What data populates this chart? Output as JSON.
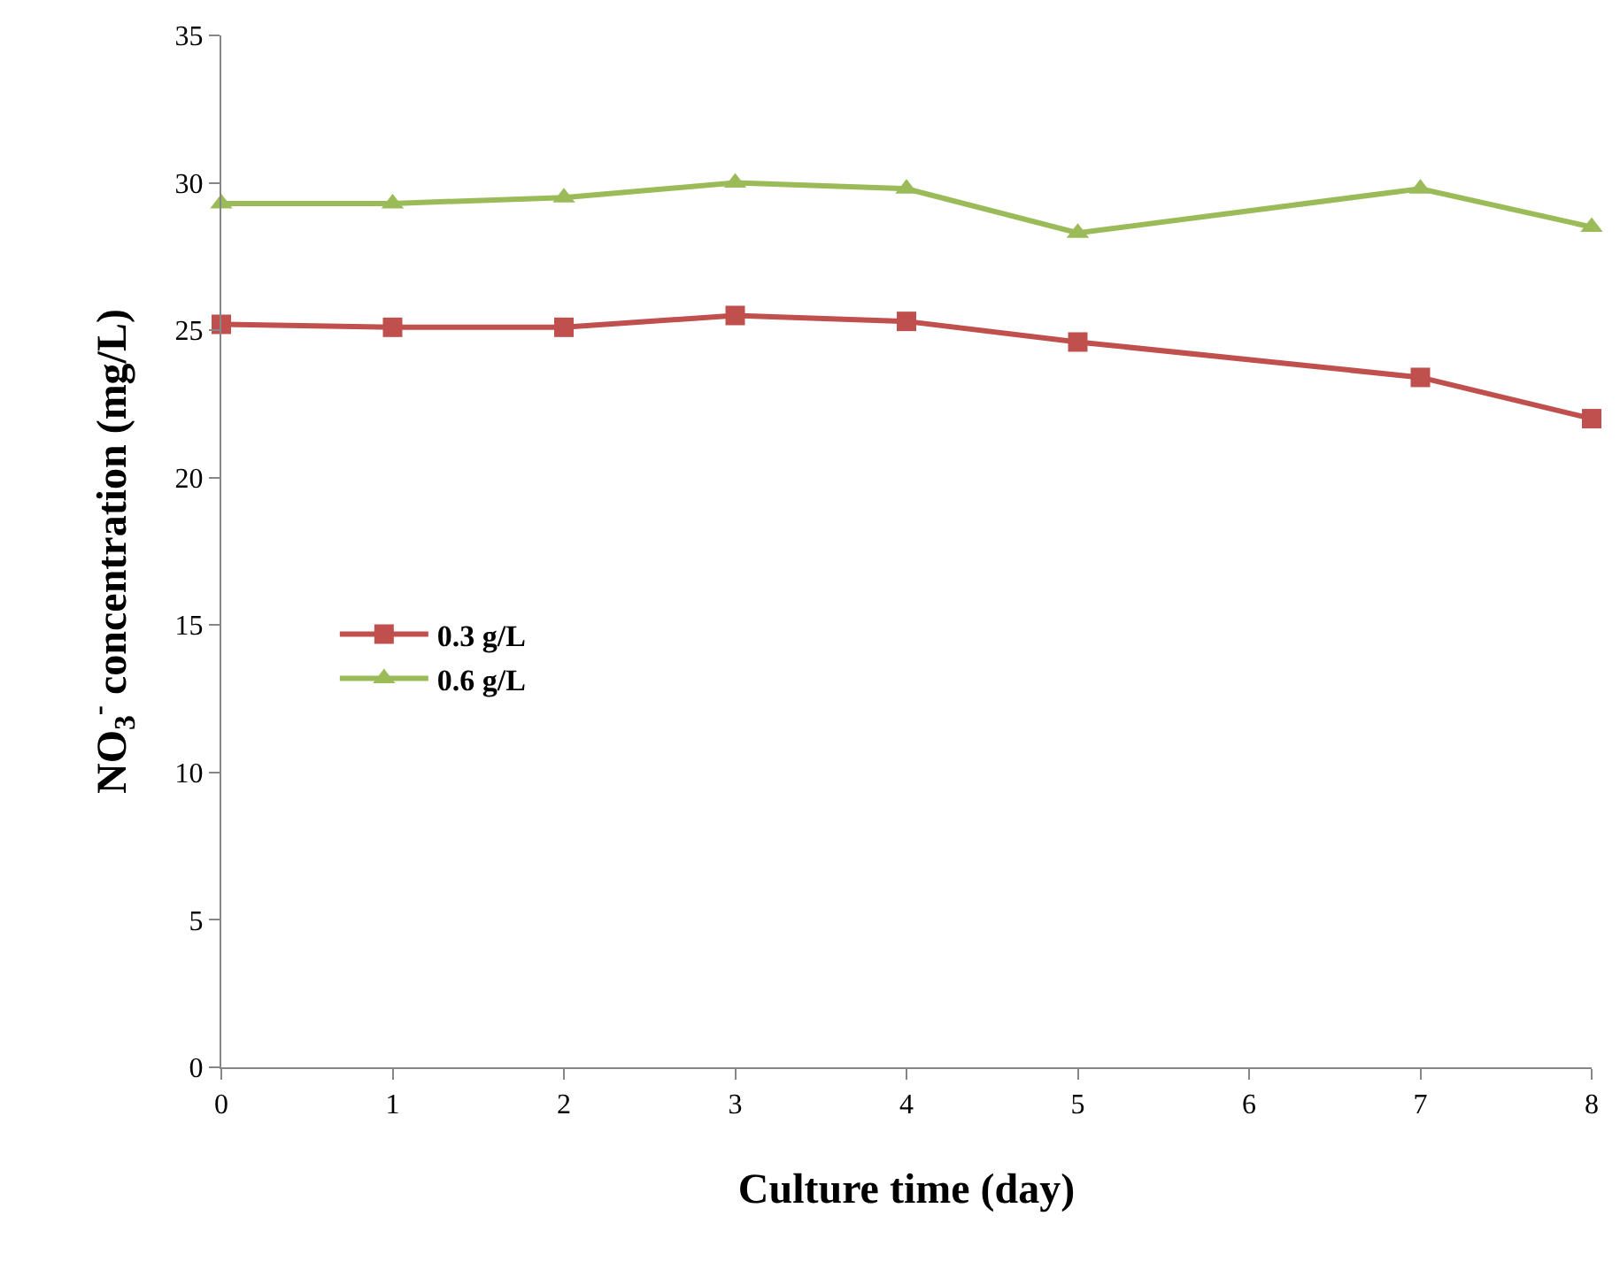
{
  "chart_data": {
    "type": "line",
    "xlabel": "Culture time (day)",
    "ylabel": "NO$_{3}$$^{-}$ concentration (mg/L)",
    "x": [
      0,
      1,
      2,
      3,
      4,
      5,
      7,
      8
    ],
    "series": [
      {
        "name": "0.3 g/L",
        "color": "#c0504d",
        "marker": "square",
        "values": [
          25.2,
          25.1,
          25.1,
          25.5,
          25.3,
          24.6,
          23.4,
          22.0
        ]
      },
      {
        "name": "0.6 g/L",
        "color": "#9bbb59",
        "marker": "triangle",
        "values": [
          29.3,
          29.3,
          29.5,
          30.0,
          29.8,
          28.3,
          29.8,
          28.5
        ]
      }
    ],
    "xlim": [
      0,
      8
    ],
    "xticks": [
      0,
      1,
      2,
      3,
      4,
      5,
      6,
      7,
      8
    ],
    "ylim": [
      0,
      35
    ],
    "yticks": [
      0,
      5,
      10,
      15,
      20,
      25,
      30,
      35
    ],
    "legend": "left",
    "line_style": "solid"
  }
}
